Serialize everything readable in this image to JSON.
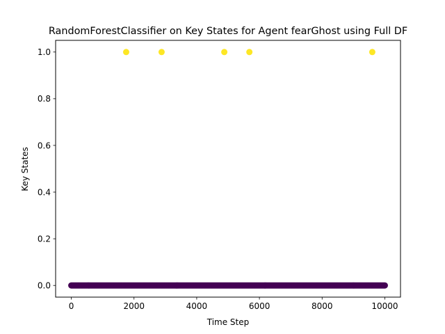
{
  "chart_data": {
    "type": "scatter",
    "title": "RandomForestClassifier on Key States for Agent fearGhost using Full DF",
    "xlabel": "Time Step",
    "ylabel": "Key States",
    "xlim": [
      -500,
      10500
    ],
    "ylim": [
      -0.05,
      1.05
    ],
    "x_ticks": [
      0,
      2000,
      4000,
      6000,
      8000,
      10000
    ],
    "x_tick_labels": [
      "0",
      "2000",
      "4000",
      "6000",
      "8000",
      "10000"
    ],
    "y_ticks": [
      0.0,
      0.2,
      0.4,
      0.6,
      0.8,
      1.0
    ],
    "y_tick_labels": [
      "0.0",
      "0.2",
      "0.4",
      "0.6",
      "0.8",
      "1.0"
    ],
    "grid": false,
    "legend": "none",
    "colormap": "viridis",
    "colors": {
      "zero": "#440154",
      "one": "#fde725"
    },
    "series": [
      {
        "class_value": 0,
        "x_range": [
          0,
          10000
        ],
        "step": 25,
        "y": 0.0
      },
      {
        "class_value": 1,
        "x": [
          1750,
          2880,
          4880,
          5680,
          9600
        ],
        "y": [
          1.0,
          1.0,
          1.0,
          1.0,
          1.0
        ]
      }
    ]
  }
}
